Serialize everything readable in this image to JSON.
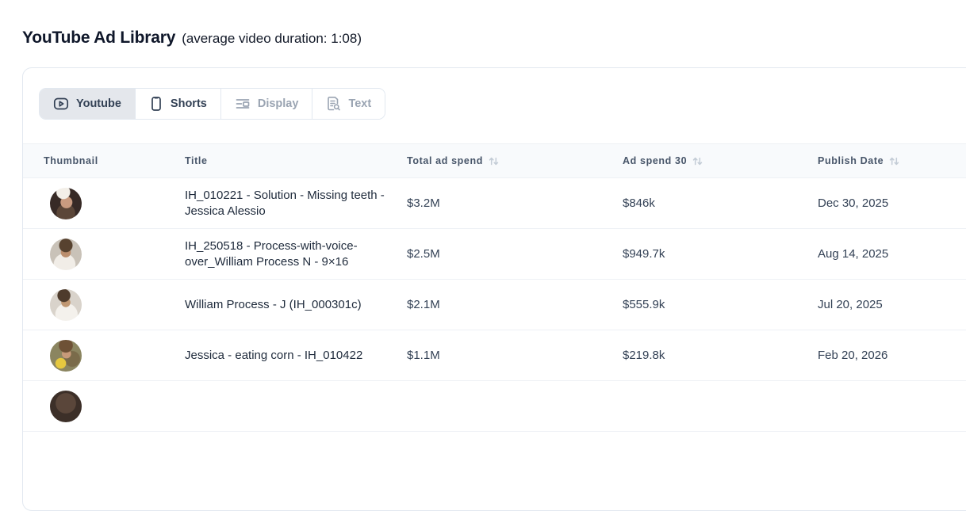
{
  "header": {
    "title": "YouTube Ad Library",
    "subtitle": "(average video duration: 1:08)"
  },
  "tabs": [
    {
      "label": "Youtube",
      "icon": "youtube-play-icon",
      "state": "selected"
    },
    {
      "label": "Shorts",
      "icon": "phone-icon",
      "state": "default"
    },
    {
      "label": "Display",
      "icon": "display-layout-icon",
      "state": "disabled"
    },
    {
      "label": "Text",
      "icon": "file-search-icon",
      "state": "disabled"
    }
  ],
  "table": {
    "columns": [
      {
        "label": "Thumbnail",
        "sortable": false
      },
      {
        "label": "Title",
        "sortable": false
      },
      {
        "label": "Total ad spend",
        "sortable": true
      },
      {
        "label": "Ad spend 30",
        "sortable": true
      },
      {
        "label": "Publish Date",
        "sortable": true
      }
    ],
    "rows": [
      {
        "thumb": "jessica-teeth",
        "title": "IH_010221 - Solution - Missing teeth - Jessica Alessio",
        "total_ad_spend": "$3.2M",
        "ad_spend_30": "$846k",
        "publish_date": "Dec 30, 2025"
      },
      {
        "thumb": "william-voiceover",
        "title": "IH_250518 - Process-with-voice-over_William Process N - 9×16",
        "total_ad_spend": "$2.5M",
        "ad_spend_30": "$949.7k",
        "publish_date": "Aug 14, 2025"
      },
      {
        "thumb": "william-process",
        "title": "William Process - J (IH_000301c)",
        "total_ad_spend": "$2.1M",
        "ad_spend_30": "$555.9k",
        "publish_date": "Jul 20, 2025"
      },
      {
        "thumb": "jessica-corn",
        "title": "Jessica - eating corn - IH_010422",
        "total_ad_spend": "$1.1M",
        "ad_spend_30": "$219.8k",
        "publish_date": "Feb 20, 2026"
      },
      {
        "thumb": "row5"
      }
    ]
  },
  "colors": {
    "card_border": "#e2e8f0",
    "selected_tab_bg": "#e4e7ec",
    "table_header_bg": "#f8fafc",
    "heading_text": "#0f172a",
    "body_text": "#334155",
    "muted_text": "#9aa4b2",
    "sort_icon": "#c3ccd6"
  }
}
